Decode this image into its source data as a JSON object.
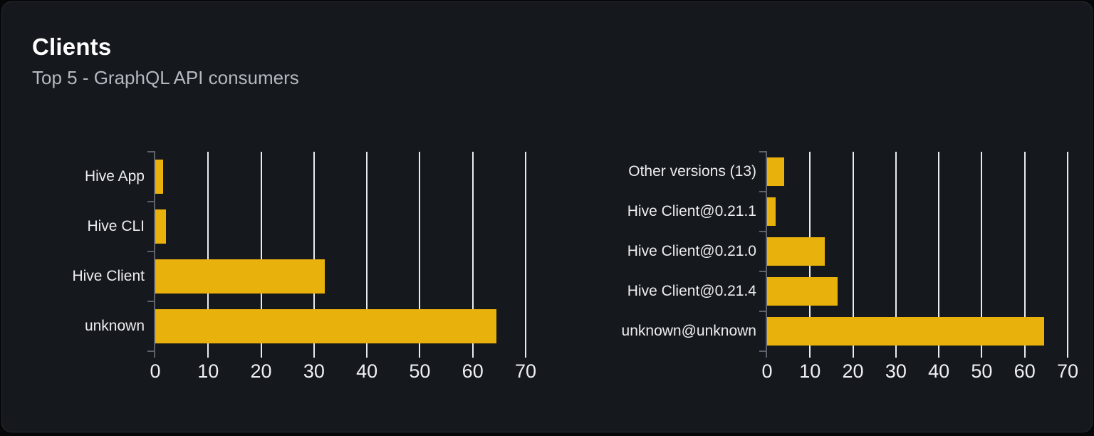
{
  "card": {
    "title": "Clients",
    "subtitle": "Top 5 - GraphQL API consumers"
  },
  "colors": {
    "bar": "#e8b10c",
    "gridline": "#e9ebef",
    "axis": "#5c616b",
    "card_background": "#15181d",
    "page_background": "#060708",
    "title_text": "#ffffff",
    "subtitle_text": "#b4b8bf",
    "label_text": "#eceef0"
  },
  "chart_data": [
    {
      "type": "bar",
      "orientation": "horizontal",
      "name": "clients",
      "categories": [
        "Hive App",
        "Hive CLI",
        "Hive Client",
        "unknown"
      ],
      "values": [
        1.5,
        2,
        32,
        64.5
      ],
      "xlim": [
        0,
        70
      ],
      "xticks": [
        0,
        10,
        20,
        30,
        40,
        50,
        60,
        70
      ],
      "grid": true,
      "legend": false,
      "title": "",
      "xlabel": "",
      "ylabel": ""
    },
    {
      "type": "bar",
      "orientation": "horizontal",
      "name": "client-versions",
      "categories": [
        "Other versions (13)",
        "Hive Client@0.21.1",
        "Hive Client@0.21.0",
        "Hive Client@0.21.4",
        "unknown@unknown"
      ],
      "values": [
        4,
        2,
        13.5,
        16.5,
        64.5
      ],
      "xlim": [
        0,
        70
      ],
      "xticks": [
        0,
        10,
        20,
        30,
        40,
        50,
        60,
        70
      ],
      "grid": true,
      "legend": false,
      "title": "",
      "xlabel": "",
      "ylabel": ""
    }
  ]
}
